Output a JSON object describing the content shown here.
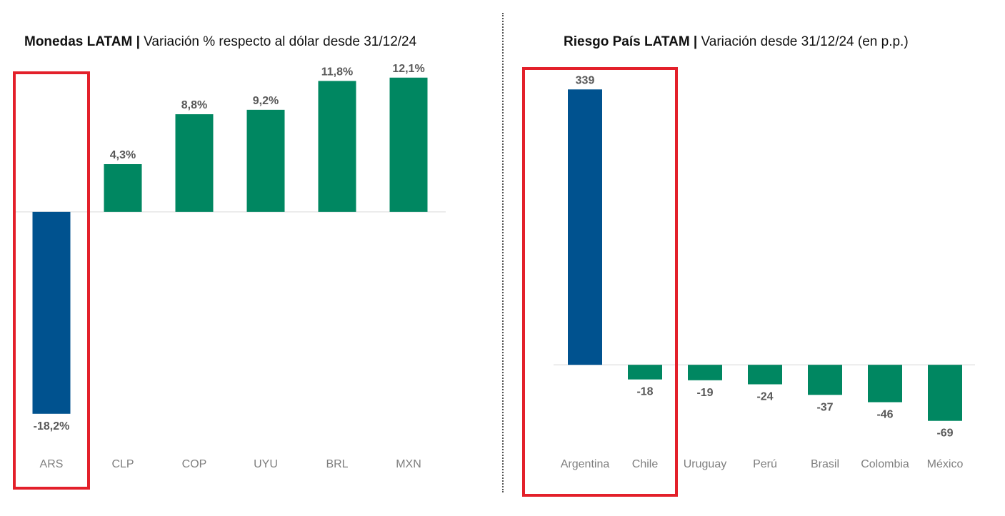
{
  "colors": {
    "highlight_bar": "#00528f",
    "default_bar": "#008761",
    "highlight_box": "#e3202a",
    "axis": "#d9d9d9"
  },
  "chart_data": [
    {
      "type": "bar",
      "title_bold": "Monedas LATAM |",
      "title_rest": " Variación % respecto al dólar desde 31/12/24",
      "categories": [
        "ARS",
        "CLP",
        "COP",
        "UYU",
        "BRL",
        "MXN"
      ],
      "values": [
        -18.2,
        4.3,
        8.8,
        9.2,
        11.8,
        12.1
      ],
      "value_labels": [
        "-18,2%",
        "4,3%",
        "8,8%",
        "9,2%",
        "11,8%",
        "12,1%"
      ],
      "highlight_index": 0,
      "ylim": [
        -19.5,
        13.5
      ],
      "grid": false,
      "legend": "none"
    },
    {
      "type": "bar",
      "title_bold": "Riesgo País LATAM |",
      "title_rest": " Variación desde 31/12/24 (en p.p.)",
      "categories": [
        "Argentina",
        "Chile",
        "Uruguay",
        "Perú",
        "Brasil",
        "Colombia",
        "México"
      ],
      "values": [
        339,
        -18,
        -19,
        -24,
        -37,
        -46,
        -69
      ],
      "value_labels": [
        "339",
        "-18",
        "-19",
        "-24",
        "-37",
        "-46",
        "-69"
      ],
      "highlight_index": 0,
      "ylim": [
        -100,
        370
      ],
      "grid": false,
      "legend": "none"
    }
  ]
}
